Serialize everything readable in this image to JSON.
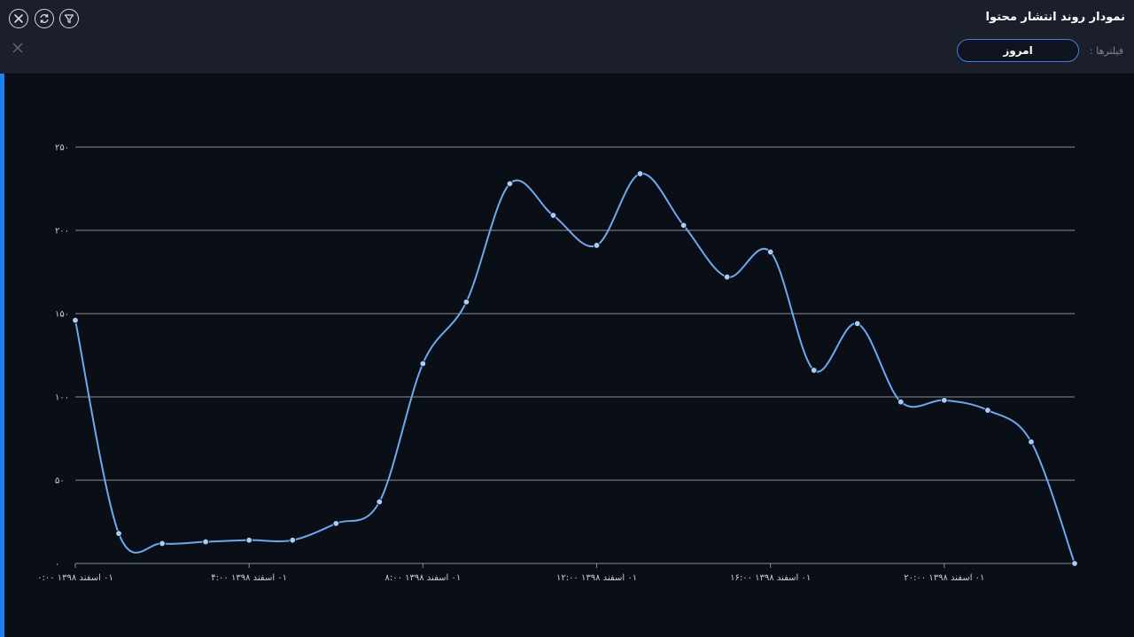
{
  "header": {
    "title": "نمودار روند انتشار محتوا",
    "filter_label": "فیلترها :",
    "filter_chip": "امروز",
    "icons": [
      "close-circle-icon",
      "refresh-icon",
      "filter-icon",
      "clear-x-icon"
    ]
  },
  "colors": {
    "background": "#0a0e17",
    "header": "#1a1f2b",
    "line": "#6ea8f0",
    "point": "#a9cdf7",
    "grid": "#8a8f99",
    "accent": "#1d7ff0"
  },
  "chart_data": {
    "type": "line",
    "title": "",
    "xlabel": "",
    "ylabel": "",
    "ylim": [
      0,
      250
    ],
    "yticks": [
      "۰",
      "۵۰",
      "۱۰۰",
      "۱۵۰",
      "۲۰۰",
      "۲۵۰"
    ],
    "ytick_values": [
      0,
      50,
      100,
      150,
      200,
      250
    ],
    "xtick_labels": [
      "۰۱ اسفند ۱۳۹۸ ۰:۰۰",
      "۰۱ اسفند ۱۳۹۸ ۴:۰۰",
      "۰۱ اسفند ۱۳۹۸ ۸:۰۰",
      "۰۱ اسفند ۱۳۹۸ ۱۲:۰۰",
      "۰۱ اسفند ۱۳۹۸ ۱۶:۰۰",
      "۰۱ اسفند ۱۳۹۸ ۲۰:۰۰"
    ],
    "xtick_hours": [
      0,
      4,
      8,
      12,
      16,
      20
    ],
    "x": [
      0,
      1,
      2,
      3,
      4,
      5,
      6,
      7,
      8,
      9,
      10,
      11,
      12,
      13,
      14,
      15,
      16,
      17,
      18,
      19,
      20,
      21,
      22,
      23
    ],
    "values": [
      146,
      18,
      12,
      13,
      14,
      14,
      24,
      37,
      120,
      157,
      228,
      209,
      191,
      234,
      203,
      172,
      187,
      116,
      144,
      97,
      98,
      92,
      73,
      0
    ],
    "grid": true,
    "legend": "none"
  }
}
